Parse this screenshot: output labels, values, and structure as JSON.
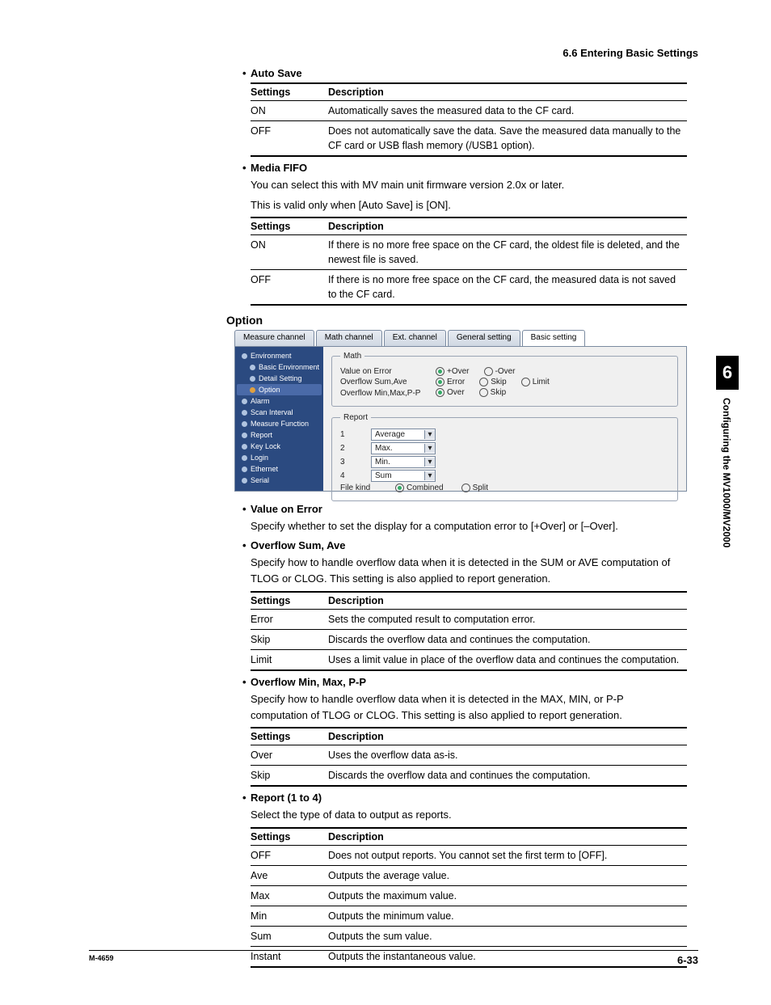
{
  "header": {
    "section_title": "6.6  Entering Basic Settings"
  },
  "auto_save": {
    "title": "Auto Save",
    "col1": "Settings",
    "col2": "Description",
    "rows": [
      {
        "s": "ON",
        "d": "Automatically saves the measured data to the CF card."
      },
      {
        "s": "OFF",
        "d": "Does not automatically save the data. Save the measured data manually to the CF card or USB flash memory (/USB1 option)."
      }
    ]
  },
  "media_fifo": {
    "title": "Media FIFO",
    "p1": "You can select this with MV main unit firmware version 2.0x or later.",
    "p2": "This is valid only when [Auto Save] is [ON].",
    "col1": "Settings",
    "col2": "Description",
    "rows": [
      {
        "s": "ON",
        "d": "If there is no more free space on the CF card, the oldest file is deleted, and the newest file is saved."
      },
      {
        "s": "OFF",
        "d": "If there is no more free space on the CF card, the measured data is not saved to the CF card."
      }
    ]
  },
  "option_heading": "Option",
  "screenshot": {
    "tabs": [
      "Measure channel",
      "Math channel",
      "Ext. channel",
      "General setting",
      "Basic setting"
    ],
    "active_tab_index": 4,
    "sidebar": [
      {
        "label": "Environment",
        "lvl": 1,
        "sel": false
      },
      {
        "label": "Basic Environment",
        "lvl": 2,
        "sel": false
      },
      {
        "label": "Detail Setting",
        "lvl": 2,
        "sel": false
      },
      {
        "label": "Option",
        "lvl": 2,
        "sel": true
      },
      {
        "label": "Alarm",
        "lvl": 1,
        "sel": false
      },
      {
        "label": "Scan Interval",
        "lvl": 1,
        "sel": false
      },
      {
        "label": "Measure Function",
        "lvl": 1,
        "sel": false
      },
      {
        "label": "Report",
        "lvl": 1,
        "sel": false
      },
      {
        "label": "Key Lock",
        "lvl": 1,
        "sel": false
      },
      {
        "label": "Login",
        "lvl": 1,
        "sel": false
      },
      {
        "label": "Ethernet",
        "lvl": 1,
        "sel": false
      },
      {
        "label": "Serial",
        "lvl": 1,
        "sel": false
      }
    ],
    "math": {
      "legend": "Math",
      "rows": [
        {
          "label": "Value on Error",
          "opts": [
            "+Over",
            "-Over"
          ],
          "sel": 0
        },
        {
          "label": "Overflow Sum,Ave",
          "opts": [
            "Error",
            "Skip",
            "Limit"
          ],
          "sel": 0
        },
        {
          "label": "Overflow Min,Max,P-P",
          "opts": [
            "Over",
            "Skip"
          ],
          "sel": 0
        }
      ]
    },
    "report": {
      "legend": "Report",
      "items": [
        {
          "n": "1",
          "v": "Average"
        },
        {
          "n": "2",
          "v": "Max."
        },
        {
          "n": "3",
          "v": "Min."
        },
        {
          "n": "4",
          "v": "Sum"
        }
      ],
      "file_kind_label": "File kind",
      "file_kind_opts": [
        "Combined",
        "Split"
      ],
      "file_kind_sel": 0
    }
  },
  "value_on_error": {
    "title": "Value on Error",
    "body": "Specify whether to set the display for a computation error to [+Over] or [–Over]."
  },
  "overflow_sum": {
    "title": "Overflow Sum, Ave",
    "body": "Specify how to handle overflow data when it is detected in the SUM or AVE computation of TLOG or CLOG.  This setting is also applied to report generation.",
    "col1": "Settings",
    "col2": "Description",
    "rows": [
      {
        "s": "Error",
        "d": "Sets the computed result to computation error."
      },
      {
        "s": "Skip",
        "d": "Discards the overflow data and continues the computation."
      },
      {
        "s": "Limit",
        "d": "Uses a limit value in place of the overflow data and continues the computation."
      }
    ]
  },
  "overflow_min": {
    "title": "Overflow Min, Max, P-P",
    "body": "Specify how to handle overflow data when it is detected in the MAX, MIN, or P-P computation of TLOG or CLOG.  This setting is also applied to report generation.",
    "col1": "Settings",
    "col2": "Description",
    "rows": [
      {
        "s": "Over",
        "d": "Uses the overflow data as-is."
      },
      {
        "s": "Skip",
        "d": "Discards the overflow data and continues the computation."
      }
    ]
  },
  "report14": {
    "title": "Report (1 to 4)",
    "body": "Select the type of data to output as reports.",
    "col1": "Settings",
    "col2": "Description",
    "rows": [
      {
        "s": "OFF",
        "d": "Does not output reports. You cannot set the first term to [OFF]."
      },
      {
        "s": "Ave",
        "d": "Outputs the average value."
      },
      {
        "s": "Max",
        "d": "Outputs the maximum value."
      },
      {
        "s": "Min",
        "d": "Outputs the minimum value."
      },
      {
        "s": "Sum",
        "d": "Outputs the sum value."
      },
      {
        "s": "Instant",
        "d": "Outputs the instantaneous value."
      }
    ]
  },
  "sidetab": {
    "chapter": "6",
    "text": "Configuring the MV1000/MV2000"
  },
  "footer": {
    "mcode": "M-4659",
    "pagenum": "6-33"
  }
}
